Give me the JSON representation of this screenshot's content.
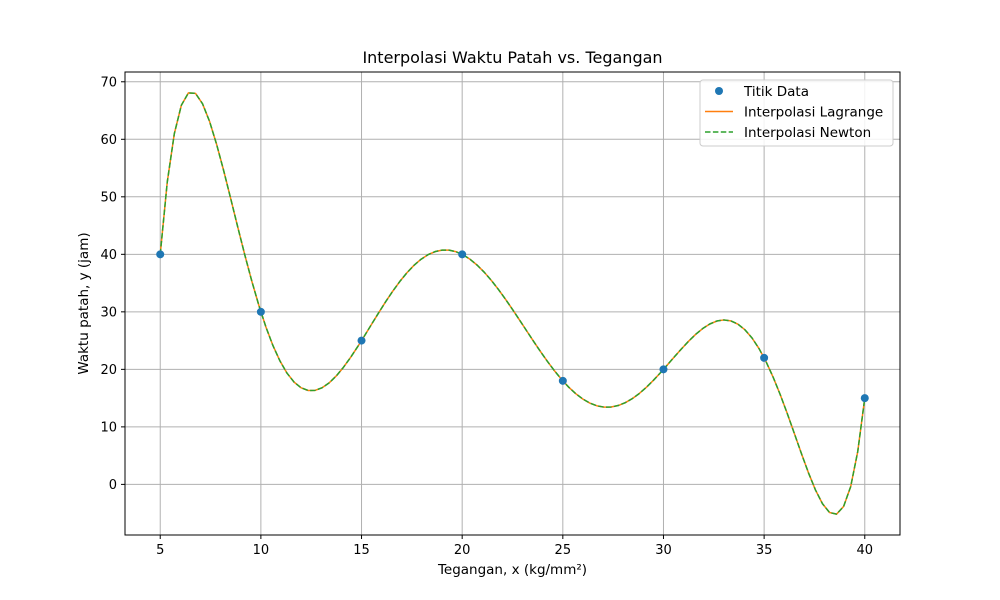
{
  "chart_data": {
    "type": "line",
    "title": "Interpolasi Waktu Patah vs. Tegangan",
    "xlabel": "Tegangan, x (kg/mm²)",
    "ylabel": "Waktu patah, y (jam)",
    "xlim": [
      3.25,
      41.75
    ],
    "ylim": [
      -8.8,
      71.7
    ],
    "xticks": [
      5,
      10,
      15,
      20,
      25,
      30,
      35,
      40
    ],
    "yticks": [
      0,
      10,
      20,
      30,
      40,
      50,
      60,
      70
    ],
    "grid": true,
    "legend_position": "top-right",
    "colors": {
      "data_points": "#1f77b4",
      "lagrange": "#ff7f0e",
      "newton": "#2ca02c",
      "grid": "#b0b0b0"
    },
    "series": [
      {
        "name": "Titik Data",
        "kind": "scatter",
        "x": [
          5,
          10,
          15,
          20,
          25,
          30,
          35,
          40
        ],
        "y": [
          40,
          30,
          25,
          40,
          18,
          20,
          22,
          15
        ]
      },
      {
        "name": "Interpolasi Lagrange",
        "kind": "line",
        "style": "solid",
        "x": [
          5,
          10,
          15,
          20,
          25,
          30,
          35,
          40
        ],
        "y": [
          40,
          30,
          25,
          40,
          18,
          20,
          22,
          15
        ]
      },
      {
        "name": "Interpolasi Newton",
        "kind": "line",
        "style": "dashed",
        "x": [
          5,
          10,
          15,
          20,
          25,
          30,
          35,
          40
        ],
        "y": [
          40,
          30,
          25,
          40,
          18,
          20,
          22,
          15
        ]
      }
    ]
  }
}
